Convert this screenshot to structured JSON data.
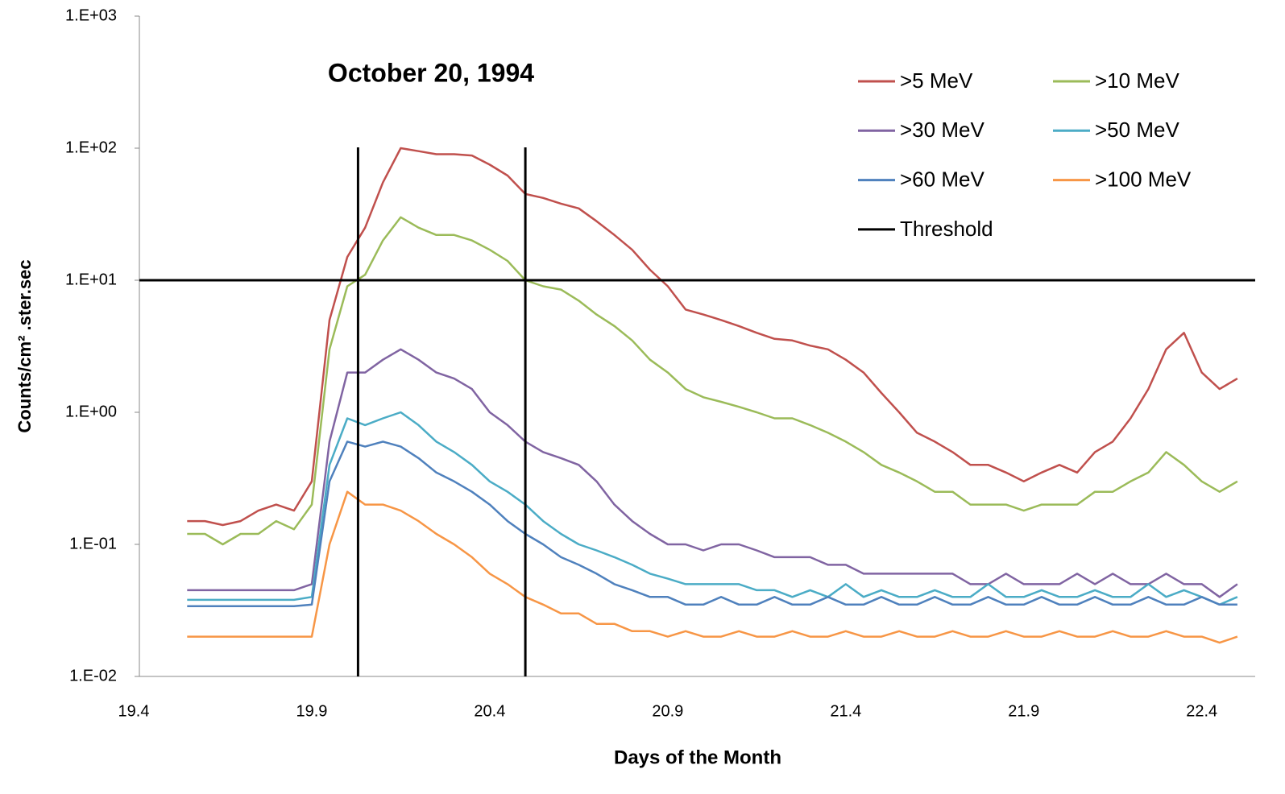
{
  "chart_data": {
    "type": "line",
    "title": "October 20, 1994",
    "xlabel": "Days of the Month",
    "ylabel": "Counts/cm² .ster.sec",
    "yscale": "log",
    "xlim": [
      19.4,
      22.55
    ],
    "xticks": [
      19.4,
      19.9,
      20.4,
      20.9,
      21.4,
      21.9,
      22.4
    ],
    "ylim": [
      0.01,
      1000
    ],
    "yticks": [
      {
        "value": 0.01,
        "label": "1.E-02"
      },
      {
        "value": 0.1,
        "label": "1.E-01"
      },
      {
        "value": 1,
        "label": "1.E+00"
      },
      {
        "value": 10,
        "label": "1.E+01"
      },
      {
        "value": 100,
        "label": "1.E+02"
      },
      {
        "value": 1000,
        "label": "1.E+03"
      }
    ],
    "grid": false,
    "x": [
      19.55,
      19.6,
      19.65,
      19.7,
      19.75,
      19.8,
      19.85,
      19.9,
      19.95,
      20.0,
      20.05,
      20.1,
      20.15,
      20.2,
      20.25,
      20.3,
      20.35,
      20.4,
      20.45,
      20.5,
      20.55,
      20.6,
      20.65,
      20.7,
      20.75,
      20.8,
      20.85,
      20.9,
      20.95,
      21.0,
      21.05,
      21.1,
      21.15,
      21.2,
      21.25,
      21.3,
      21.35,
      21.4,
      21.45,
      21.5,
      21.55,
      21.6,
      21.65,
      21.7,
      21.75,
      21.8,
      21.85,
      21.9,
      21.95,
      22.0,
      22.05,
      22.1,
      22.15,
      22.2,
      22.25,
      22.3,
      22.35,
      22.4,
      22.45,
      22.5
    ],
    "series": [
      {
        "name": ">5 MeV",
        "color": "#c0504d",
        "values": [
          0.15,
          0.15,
          0.14,
          0.15,
          0.18,
          0.2,
          0.18,
          0.3,
          5,
          15,
          25,
          55,
          100,
          95,
          90,
          90,
          88,
          75,
          62,
          45,
          42,
          38,
          35,
          28,
          22,
          17,
          12,
          9,
          6,
          5.5,
          5,
          4.5,
          4,
          3.6,
          3.5,
          3.2,
          3,
          2.5,
          2,
          1.4,
          1,
          0.7,
          0.6,
          0.5,
          0.4,
          0.4,
          0.35,
          0.3,
          0.35,
          0.4,
          0.35,
          0.5,
          0.6,
          0.9,
          1.5,
          3,
          4,
          2,
          1.5,
          1.8
        ]
      },
      {
        "name": ">10 MeV",
        "color": "#9bbb59",
        "values": [
          0.12,
          0.12,
          0.1,
          0.12,
          0.12,
          0.15,
          0.13,
          0.2,
          3,
          9,
          11,
          20,
          30,
          25,
          22,
          22,
          20,
          17,
          14,
          10,
          9,
          8.5,
          7,
          5.5,
          4.5,
          3.5,
          2.5,
          2,
          1.5,
          1.3,
          1.2,
          1.1,
          1,
          0.9,
          0.9,
          0.8,
          0.7,
          0.6,
          0.5,
          0.4,
          0.35,
          0.3,
          0.25,
          0.25,
          0.2,
          0.2,
          0.2,
          0.18,
          0.2,
          0.2,
          0.2,
          0.25,
          0.25,
          0.3,
          0.35,
          0.5,
          0.4,
          0.3,
          0.25,
          0.3
        ]
      },
      {
        "name": ">30 MeV",
        "color": "#8064a2",
        "values": [
          0.045,
          0.045,
          0.045,
          0.045,
          0.045,
          0.045,
          0.045,
          0.05,
          0.6,
          2,
          2,
          2.5,
          3,
          2.5,
          2,
          1.8,
          1.5,
          1,
          0.8,
          0.6,
          0.5,
          0.45,
          0.4,
          0.3,
          0.2,
          0.15,
          0.12,
          0.1,
          0.1,
          0.09,
          0.1,
          0.1,
          0.09,
          0.08,
          0.08,
          0.08,
          0.07,
          0.07,
          0.06,
          0.06,
          0.06,
          0.06,
          0.06,
          0.06,
          0.05,
          0.05,
          0.06,
          0.05,
          0.05,
          0.05,
          0.06,
          0.05,
          0.06,
          0.05,
          0.05,
          0.06,
          0.05,
          0.05,
          0.04,
          0.05
        ]
      },
      {
        "name": ">50 MeV",
        "color": "#4bacc6",
        "values": [
          0.038,
          0.038,
          0.038,
          0.038,
          0.038,
          0.038,
          0.038,
          0.04,
          0.4,
          0.9,
          0.8,
          0.9,
          1,
          0.8,
          0.6,
          0.5,
          0.4,
          0.3,
          0.25,
          0.2,
          0.15,
          0.12,
          0.1,
          0.09,
          0.08,
          0.07,
          0.06,
          0.055,
          0.05,
          0.05,
          0.05,
          0.05,
          0.045,
          0.045,
          0.04,
          0.045,
          0.04,
          0.05,
          0.04,
          0.045,
          0.04,
          0.04,
          0.045,
          0.04,
          0.04,
          0.05,
          0.04,
          0.04,
          0.045,
          0.04,
          0.04,
          0.045,
          0.04,
          0.04,
          0.05,
          0.04,
          0.045,
          0.04,
          0.035,
          0.04
        ]
      },
      {
        "name": ">60 MeV",
        "color": "#4f81bd",
        "values": [
          0.034,
          0.034,
          0.034,
          0.034,
          0.034,
          0.034,
          0.034,
          0.035,
          0.3,
          0.6,
          0.55,
          0.6,
          0.55,
          0.45,
          0.35,
          0.3,
          0.25,
          0.2,
          0.15,
          0.12,
          0.1,
          0.08,
          0.07,
          0.06,
          0.05,
          0.045,
          0.04,
          0.04,
          0.035,
          0.035,
          0.04,
          0.035,
          0.035,
          0.04,
          0.035,
          0.035,
          0.04,
          0.035,
          0.035,
          0.04,
          0.035,
          0.035,
          0.04,
          0.035,
          0.035,
          0.04,
          0.035,
          0.035,
          0.04,
          0.035,
          0.035,
          0.04,
          0.035,
          0.035,
          0.04,
          0.035,
          0.035,
          0.04,
          0.035,
          0.035
        ]
      },
      {
        "name": ">100 MeV",
        "color": "#f79646",
        "values": [
          0.02,
          0.02,
          0.02,
          0.02,
          0.02,
          0.02,
          0.02,
          0.02,
          0.1,
          0.25,
          0.2,
          0.2,
          0.18,
          0.15,
          0.12,
          0.1,
          0.08,
          0.06,
          0.05,
          0.04,
          0.035,
          0.03,
          0.03,
          0.025,
          0.025,
          0.022,
          0.022,
          0.02,
          0.022,
          0.02,
          0.02,
          0.022,
          0.02,
          0.02,
          0.022,
          0.02,
          0.02,
          0.022,
          0.02,
          0.02,
          0.022,
          0.02,
          0.02,
          0.022,
          0.02,
          0.02,
          0.022,
          0.02,
          0.02,
          0.022,
          0.02,
          0.02,
          0.022,
          0.02,
          0.02,
          0.022,
          0.02,
          0.02,
          0.018,
          0.02
        ]
      }
    ],
    "threshold": {
      "name": "Threshold",
      "color": "#000000",
      "y": 10,
      "x": [
        20.03,
        20.5
      ]
    }
  }
}
